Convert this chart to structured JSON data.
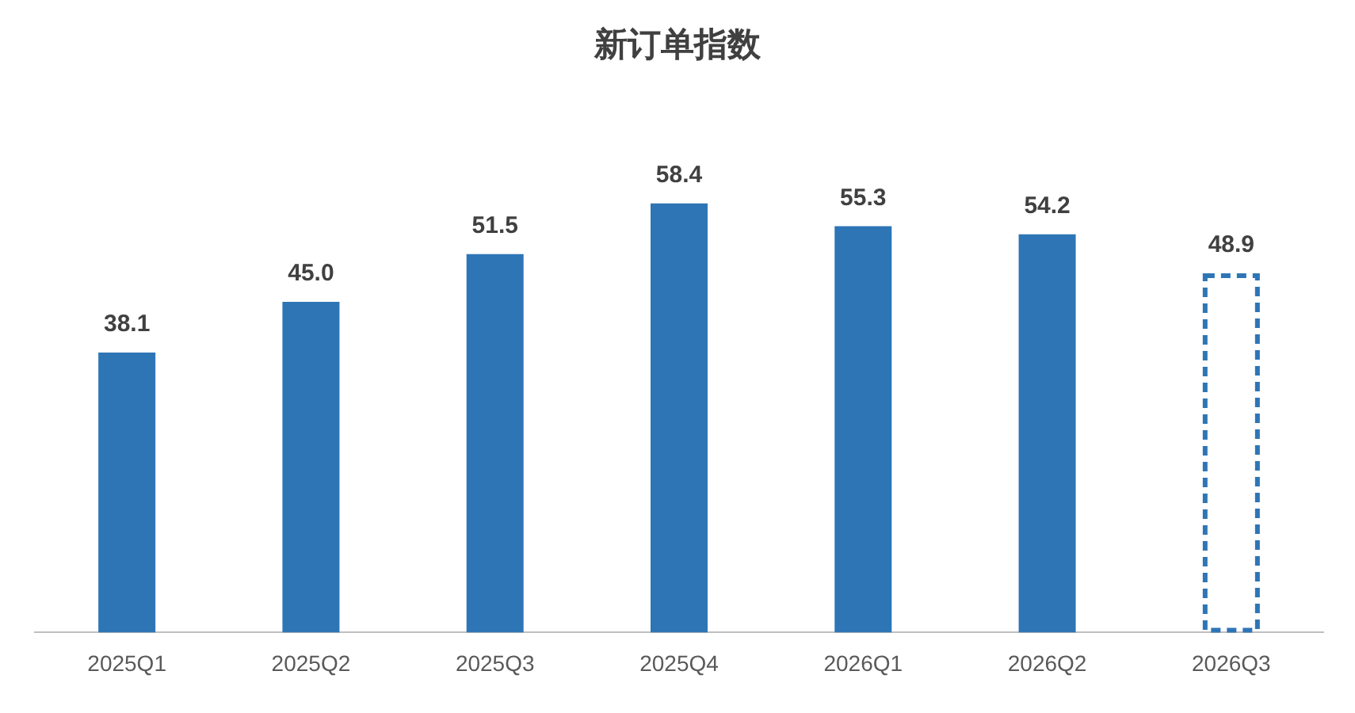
{
  "chart_data": {
    "type": "bar",
    "title": "新订单指数",
    "categories": [
      "2025Q1",
      "2025Q2",
      "2025Q3",
      "2025Q4",
      "2026Q1",
      "2026Q2",
      "2026Q3"
    ],
    "stacked": true,
    "tick_labels": "x",
    "legend": false,
    "grid": false,
    "series": [
      {
        "color": "#2e75b6",
        "values": [
          38.1,
          45.0,
          51.5,
          58.4,
          55.3,
          54.2,
          null
        ],
        "value_labels": [
          "38.1",
          "45.0",
          "51.5",
          "58.4",
          "55.3",
          "54.2",
          null
        ]
      },
      {
        "color": "#2e75b6",
        "line_style": "dashed",
        "values": [
          null,
          null,
          null,
          null,
          null,
          null,
          48.9
        ],
        "value_labels": [
          null,
          null,
          null,
          null,
          null,
          null,
          "48.9"
        ]
      }
    ]
  }
}
